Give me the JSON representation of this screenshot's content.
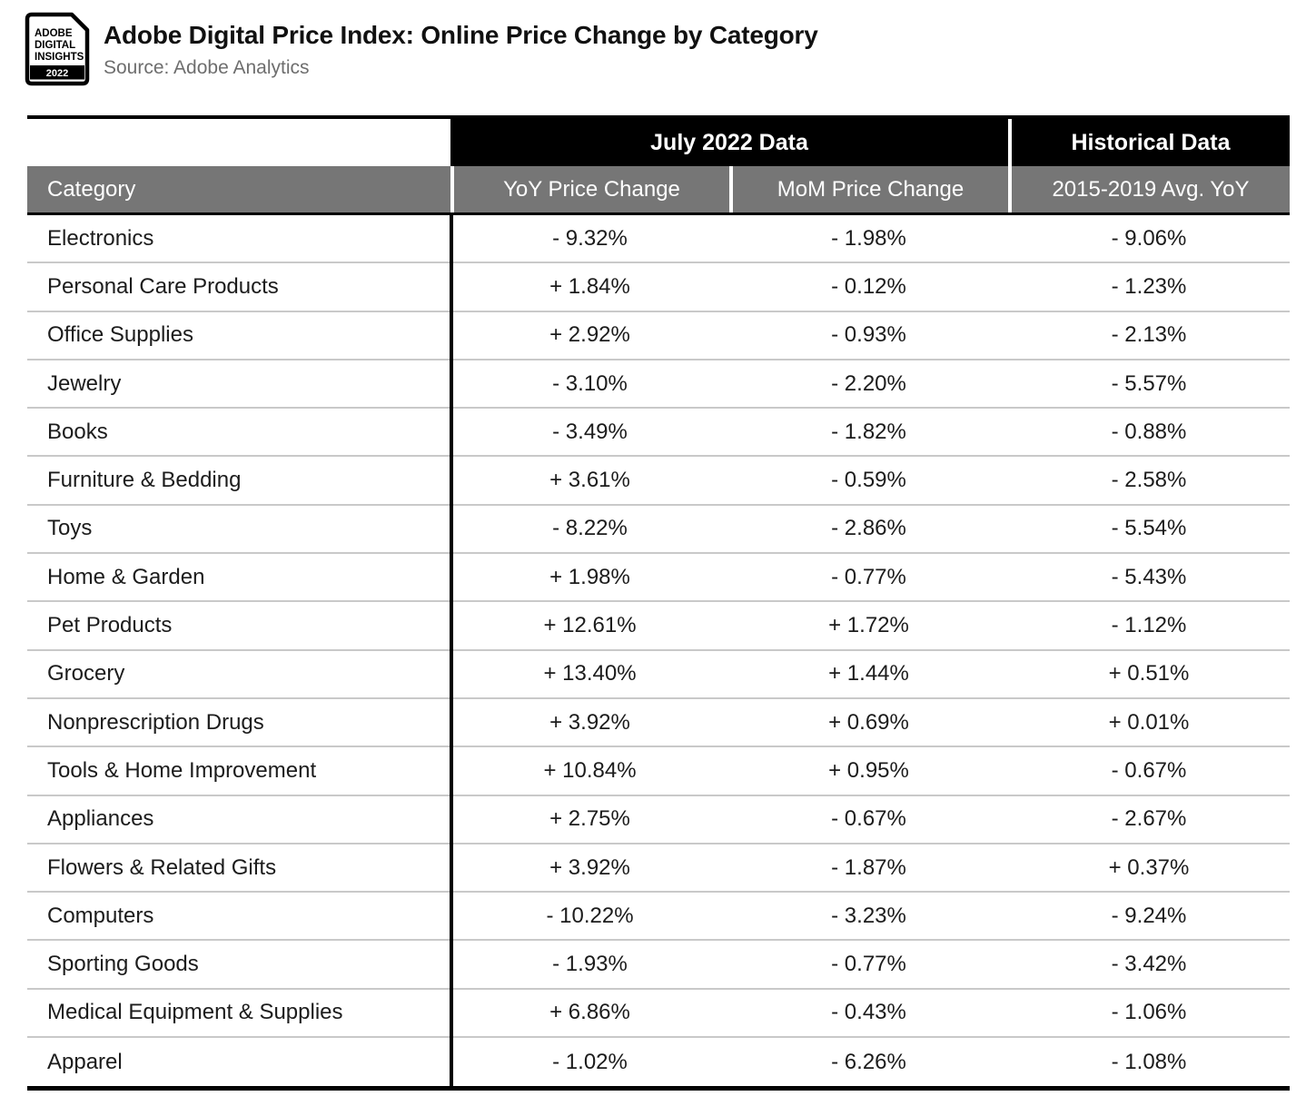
{
  "logo": {
    "lines": [
      "ADOBE",
      "DIGITAL",
      "INSIGHTS"
    ],
    "year": "2022"
  },
  "header": {
    "title": "Adobe Digital Price Index: Online Price Change by Category",
    "source": "Source: Adobe Analytics"
  },
  "table": {
    "group_headers": {
      "july": "July 2022 Data",
      "historical": "Historical Data"
    },
    "columns": {
      "category": "Category",
      "yoy": "YoY Price Change",
      "mom": "MoM Price Change",
      "hist": "2015-2019 Avg. YoY"
    },
    "rows": [
      {
        "category": "Electronics",
        "yoy": "- 9.32%",
        "mom": "- 1.98%",
        "hist": "- 9.06%"
      },
      {
        "category": "Personal Care Products",
        "yoy": "+ 1.84%",
        "mom": "- 0.12%",
        "hist": "- 1.23%"
      },
      {
        "category": "Office Supplies",
        "yoy": "+ 2.92%",
        "mom": "- 0.93%",
        "hist": "- 2.13%"
      },
      {
        "category": "Jewelry",
        "yoy": "- 3.10%",
        "mom": "- 2.20%",
        "hist": "- 5.57%"
      },
      {
        "category": "Books",
        "yoy": "- 3.49%",
        "mom": "- 1.82%",
        "hist": "- 0.88%"
      },
      {
        "category": "Furniture & Bedding",
        "yoy": "+ 3.61%",
        "mom": "- 0.59%",
        "hist": "- 2.58%"
      },
      {
        "category": "Toys",
        "yoy": "- 8.22%",
        "mom": "- 2.86%",
        "hist": "- 5.54%"
      },
      {
        "category": "Home & Garden",
        "yoy": "+ 1.98%",
        "mom": "- 0.77%",
        "hist": "- 5.43%"
      },
      {
        "category": "Pet Products",
        "yoy": "+ 12.61%",
        "mom": "+ 1.72%",
        "hist": "- 1.12%"
      },
      {
        "category": "Grocery",
        "yoy": "+ 13.40%",
        "mom": "+ 1.44%",
        "hist": "+ 0.51%"
      },
      {
        "category": "Nonprescription Drugs",
        "yoy": "+ 3.92%",
        "mom": "+ 0.69%",
        "hist": "+ 0.01%"
      },
      {
        "category": "Tools & Home Improvement",
        "yoy": "+ 10.84%",
        "mom": "+ 0.95%",
        "hist": "- 0.67%"
      },
      {
        "category": "Appliances",
        "yoy": "+ 2.75%",
        "mom": "- 0.67%",
        "hist": "- 2.67%"
      },
      {
        "category": "Flowers & Related Gifts",
        "yoy": "+ 3.92%",
        "mom": "- 1.87%",
        "hist": "+ 0.37%"
      },
      {
        "category": "Computers",
        "yoy": "- 10.22%",
        "mom": "- 3.23%",
        "hist": "- 9.24%"
      },
      {
        "category": "Sporting Goods",
        "yoy": "- 1.93%",
        "mom": "- 0.77%",
        "hist": "- 3.42%"
      },
      {
        "category": "Medical Equipment & Supplies",
        "yoy": "+ 6.86%",
        "mom": "- 0.43%",
        "hist": "- 1.06%"
      },
      {
        "category": "Apparel",
        "yoy": "- 1.02%",
        "mom": "- 6.26%",
        "hist": "- 1.08%"
      }
    ]
  },
  "colors": {
    "header_bg": "#000000",
    "subheader_bg": "#767676",
    "row_divider": "#c9c9c9",
    "text": "#1c1c1c",
    "source_text": "#6e6e6e"
  },
  "chart_data": {
    "type": "table",
    "title": "Adobe Digital Price Index: Online Price Change by Category",
    "source": "Adobe Analytics",
    "column_groups": [
      "July 2022 Data",
      "Historical Data"
    ],
    "columns": [
      "Category",
      "YoY Price Change",
      "MoM Price Change",
      "2015-2019 Avg. YoY"
    ],
    "rows": [
      [
        "Electronics",
        -9.32,
        -1.98,
        -9.06
      ],
      [
        "Personal Care Products",
        1.84,
        -0.12,
        -1.23
      ],
      [
        "Office Supplies",
        2.92,
        -0.93,
        -2.13
      ],
      [
        "Jewelry",
        -3.1,
        -2.2,
        -5.57
      ],
      [
        "Books",
        -3.49,
        -1.82,
        -0.88
      ],
      [
        "Furniture & Bedding",
        3.61,
        -0.59,
        -2.58
      ],
      [
        "Toys",
        -8.22,
        -2.86,
        -5.54
      ],
      [
        "Home & Garden",
        1.98,
        -0.77,
        -5.43
      ],
      [
        "Pet Products",
        12.61,
        1.72,
        -1.12
      ],
      [
        "Grocery",
        13.4,
        1.44,
        0.51
      ],
      [
        "Nonprescription Drugs",
        3.92,
        0.69,
        0.01
      ],
      [
        "Tools & Home Improvement",
        10.84,
        0.95,
        -0.67
      ],
      [
        "Appliances",
        2.75,
        -0.67,
        -2.67
      ],
      [
        "Flowers & Related Gifts",
        3.92,
        -1.87,
        0.37
      ],
      [
        "Computers",
        -10.22,
        -3.23,
        -9.24
      ],
      [
        "Sporting Goods",
        -1.93,
        -0.77,
        -3.42
      ],
      [
        "Medical Equipment & Supplies",
        6.86,
        -0.43,
        -1.06
      ],
      [
        "Apparel",
        -1.02,
        -6.26,
        -1.08
      ]
    ],
    "units": "percent"
  }
}
